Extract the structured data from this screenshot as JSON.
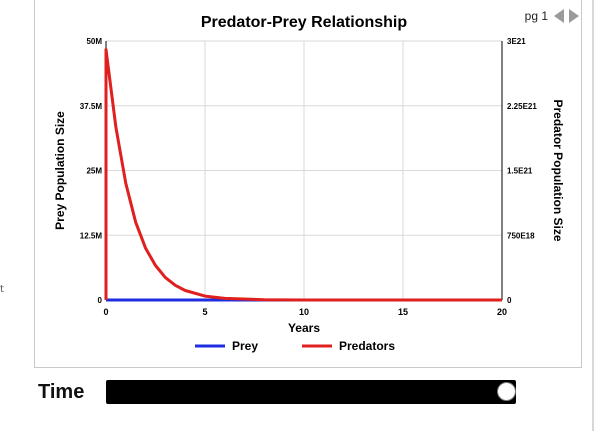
{
  "pager": {
    "label": "pg 1",
    "prev_icon": "chevron-left-icon",
    "next_icon": "chevron-right-icon"
  },
  "edge_glyph": "t",
  "time": {
    "label": "Time",
    "value_fraction": 1.0
  },
  "colors": {
    "prey": "#1f2de0",
    "predators": "#e01f1f",
    "grid": "#dadada",
    "axis": "#000000"
  },
  "chart_data": {
    "type": "line",
    "title": "Predator-Prey Relationship",
    "xlabel": "Years",
    "ylabel_left": "Prey Population Size",
    "ylabel_right": "Predator Population Size",
    "xlim": [
      0,
      20
    ],
    "ylim_left": [
      0,
      50000000
    ],
    "ylim_right": [
      0,
      3e+21
    ],
    "x_ticks": [
      "0",
      "5",
      "10",
      "15",
      "20"
    ],
    "y_ticks_left": [
      "0",
      "12.5M",
      "25M",
      "37.5M",
      "50M"
    ],
    "y_ticks_right": [
      "0",
      "750E18",
      "1.5E21",
      "2.25E21",
      "3E21"
    ],
    "grid": true,
    "legend_position": "bottom",
    "series": [
      {
        "name": "Prey",
        "axis": "left",
        "x": [
          0,
          2,
          4,
          6,
          8,
          10,
          12,
          14,
          16,
          18,
          20
        ],
        "y": [
          0,
          0,
          0,
          0,
          0,
          0,
          0,
          0,
          0,
          0,
          0
        ]
      },
      {
        "name": "Predators",
        "axis": "right",
        "x": [
          0,
          0.5,
          1,
          1.5,
          2,
          2.5,
          3,
          3.5,
          4,
          5,
          6,
          8,
          10,
          14,
          20
        ],
        "y": [
          2.9e+21,
          2e+21,
          1.35e+21,
          9e+20,
          6e+20,
          4e+20,
          2.6e+20,
          1.7e+20,
          1.1e+20,
          4.5e+19,
          1.8e+19,
          3e+18,
          5e+17,
          0,
          0
        ]
      }
    ]
  }
}
